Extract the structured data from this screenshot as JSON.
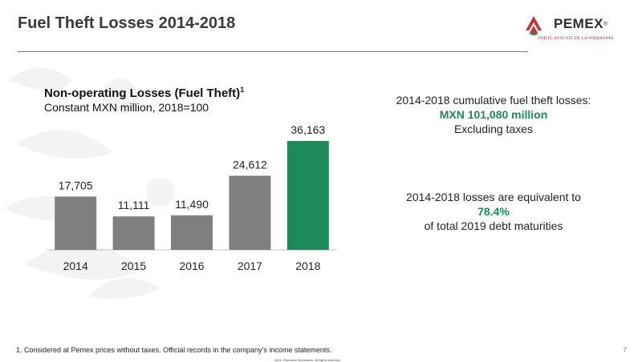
{
  "slide": {
    "title": "Fuel Theft Losses 2014-2018",
    "page_number": "7",
    "footnote": "1.    Considered at Pemex prices without taxes. Official records in the company’s income statements.",
    "copyright": "2021. Petróleos Mexicanos. All rights reserved."
  },
  "logo": {
    "name": "PEMEX",
    "trademark": "®",
    "tagline": "POR EL RESCATE DE LA SOBERANÍA"
  },
  "chart_data": {
    "type": "bar",
    "title": "Non-operating Losses (Fuel Theft)",
    "title_superscript": "1",
    "subtitle": "Constant MXN million, 2018=100",
    "categories": [
      "2014",
      "2015",
      "2016",
      "2017",
      "2018"
    ],
    "values": [
      17705,
      11111,
      11490,
      24612,
      36163
    ],
    "value_labels": [
      "17,705",
      "11,111",
      "11,490",
      "24,612",
      "36,163"
    ],
    "colors": [
      "#7f7f7f",
      "#7f7f7f",
      "#7f7f7f",
      "#7f7f7f",
      "#1d8a5a"
    ],
    "ylim": [
      0,
      36163
    ],
    "grid": false,
    "xlabel": "",
    "ylabel": ""
  },
  "callouts": {
    "cumulative": {
      "line1": "2014-2018 cumulative fuel theft losses:",
      "highlight": "MXN 101,080 million",
      "line3": "Excluding taxes"
    },
    "equivalent": {
      "line1": "2014-2018 losses are equivalent to",
      "highlight": "78.4%",
      "line3": "of total 2019 debt maturities"
    }
  },
  "colors": {
    "accent_green": "#1d8a5a",
    "bar_gray": "#7f7f7f",
    "logo_red": "#b33030"
  }
}
